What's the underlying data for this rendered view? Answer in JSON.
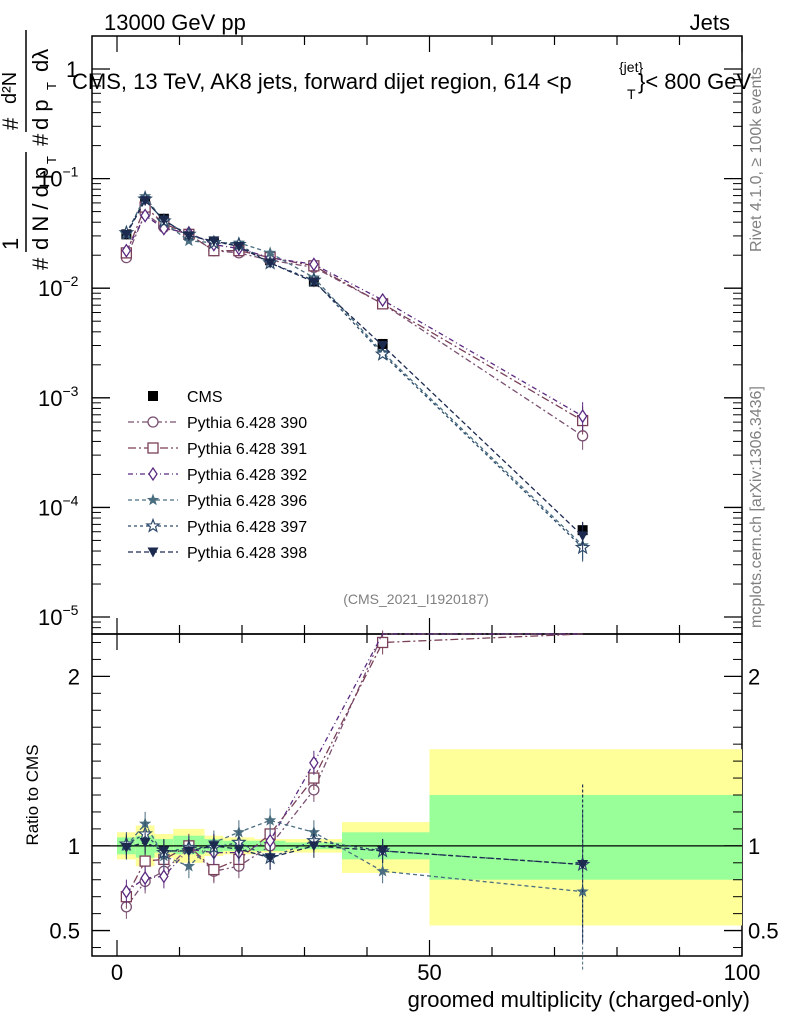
{
  "header": {
    "left": "13000 GeV pp",
    "right": "Jets",
    "title": "CMS, 13 TeV, AK8 jets, forward dijet region, 614 <p",
    "title_sup": "{jet}",
    "title_sub": "T",
    "title_tail": "}< 800 GeV"
  },
  "side": {
    "rivet": "Rivet 4.1.0, ≥ 100k events",
    "mcplots": "mcplots.cern.ch [arXiv:1306.3436]"
  },
  "ylabel": {
    "hash": "#",
    "one": "1",
    "dN": "d N / d p",
    "T": "T",
    "d2N": "d²N",
    "dpT": "d p",
    "dl": "dλ"
  },
  "watermark": "(CMS_2021_I1920187)",
  "colors": {
    "data": "#000000",
    "p390": "#7a5072",
    "p391": "#7a4058",
    "p392": "#5a2a80",
    "p396": "#4a6e80",
    "p397": "#2c4a6a",
    "p398": "#1c2a50",
    "band_inner": "#99ff99",
    "band_outer": "#ffff99"
  },
  "chart_data": [
    {
      "type": "line",
      "name": "main",
      "yscale": "log",
      "ylim": [
        7e-06,
        2.0
      ],
      "xlim": [
        -4,
        100
      ],
      "yticks": [
        {
          "value": 1e-05,
          "base": "10",
          "exp": "−5"
        },
        {
          "value": 0.0001,
          "base": "10",
          "exp": "−4"
        },
        {
          "value": 0.001,
          "base": "10",
          "exp": "−3"
        },
        {
          "value": 0.01,
          "base": "10",
          "exp": "−2"
        },
        {
          "value": 0.1,
          "base": "10",
          "exp": "−1"
        },
        {
          "value": 1,
          "base": "1",
          "exp": ""
        }
      ],
      "x": [
        1.5,
        4.5,
        7.5,
        11.5,
        15.5,
        19.5,
        24.5,
        31.5,
        42.5,
        74.5
      ],
      "series": [
        {
          "name": "CMS",
          "key": "data",
          "marker": "square",
          "dash": "",
          "values": [
            0.031,
            0.061,
            0.043,
            0.031,
            0.026,
            0.024,
            0.018,
            0.0115,
            0.0031,
            6.2e-05
          ]
        },
        {
          "name": "Pythia 6.428 390",
          "key": "p390",
          "marker": "circle",
          "dash": "6 3 2 3",
          "values": [
            0.019,
            0.048,
            0.036,
            0.031,
            0.022,
            0.021,
            0.018,
            0.0155,
            0.0072,
            0.00045
          ]
        },
        {
          "name": "Pythia 6.428 391",
          "key": "p391",
          "marker": "osquare",
          "dash": "8 3 2 3",
          "values": [
            0.021,
            0.055,
            0.039,
            0.031,
            0.022,
            0.022,
            0.019,
            0.016,
            0.0072,
            0.00062
          ]
        },
        {
          "name": "Pythia 6.428 392",
          "key": "p392",
          "marker": "diamond",
          "dash": "5 3 1 3",
          "values": [
            0.022,
            0.046,
            0.035,
            0.032,
            0.025,
            0.023,
            0.019,
            0.0165,
            0.0078,
            0.00068
          ]
        },
        {
          "name": "Pythia 6.428 396",
          "key": "p396",
          "marker": "star",
          "dash": "4 3",
          "values": [
            0.031,
            0.069,
            0.04,
            0.027,
            0.026,
            0.026,
            0.021,
            0.0125,
            0.0026,
            4.5e-05
          ]
        },
        {
          "name": "Pythia 6.428 397",
          "key": "p397",
          "marker": "ostar",
          "dash": "3 3",
          "values": [
            0.032,
            0.065,
            0.041,
            0.031,
            0.026,
            0.025,
            0.017,
            0.0118,
            0.0025,
            4.3e-05
          ]
        },
        {
          "name": "Pythia 6.428 398",
          "key": "p398",
          "marker": "tri",
          "dash": "5 3",
          "values": [
            0.031,
            0.063,
            0.042,
            0.03,
            0.027,
            0.024,
            0.017,
            0.0114,
            0.003,
            5.5e-05
          ]
        }
      ]
    },
    {
      "type": "line",
      "name": "ratio",
      "ylabel": "Ratio to CMS",
      "xlabel": "groomed multiplicity (charged-only)",
      "ylim": [
        0.35,
        2.25
      ],
      "xlim": [
        -4,
        100
      ],
      "xticks": [
        0,
        50,
        100
      ],
      "yticks": [
        0.5,
        1,
        2
      ],
      "bands": [
        {
          "x0": 0,
          "x1": 3,
          "inner": [
            0.95,
            1.05
          ],
          "outer": [
            0.92,
            1.08
          ]
        },
        {
          "x0": 3,
          "x1": 6,
          "inner": [
            0.93,
            1.06
          ],
          "outer": [
            0.88,
            1.12
          ]
        },
        {
          "x0": 6,
          "x1": 9,
          "inner": [
            0.96,
            1.04
          ],
          "outer": [
            0.93,
            1.07
          ]
        },
        {
          "x0": 9,
          "x1": 14,
          "inner": [
            0.95,
            1.06
          ],
          "outer": [
            0.9,
            1.1
          ]
        },
        {
          "x0": 14,
          "x1": 17,
          "inner": [
            0.96,
            1.04
          ],
          "outer": [
            0.94,
            1.06
          ]
        },
        {
          "x0": 17,
          "x1": 22,
          "inner": [
            0.97,
            1.03
          ],
          "outer": [
            0.95,
            1.05
          ]
        },
        {
          "x0": 22,
          "x1": 27,
          "inner": [
            0.97,
            1.03
          ],
          "outer": [
            0.96,
            1.04
          ]
        },
        {
          "x0": 27,
          "x1": 36,
          "inner": [
            0.98,
            1.02
          ],
          "outer": [
            0.96,
            1.04
          ]
        },
        {
          "x0": 36,
          "x1": 50,
          "inner": [
            0.92,
            1.08
          ],
          "outer": [
            0.84,
            1.14
          ]
        },
        {
          "x0": 50,
          "x1": 100,
          "inner": [
            0.8,
            1.3
          ],
          "outer": [
            0.53,
            1.57
          ]
        }
      ],
      "x": [
        1.5,
        4.5,
        7.5,
        11.5,
        15.5,
        19.5,
        24.5,
        31.5,
        42.5,
        74.5
      ],
      "series": [
        {
          "name": "Pythia 6.428 390",
          "key": "p390",
          "marker": "circle",
          "dash": "6 3 2 3",
          "values": [
            0.64,
            0.79,
            0.85,
            0.99,
            0.85,
            0.88,
            1.0,
            1.33,
            2.25,
            2.25
          ]
        },
        {
          "name": "Pythia 6.428 391",
          "key": "p391",
          "marker": "osquare",
          "dash": "8 3 2 3",
          "values": [
            0.7,
            0.91,
            0.92,
            1.0,
            0.86,
            0.92,
            1.07,
            1.4,
            2.2,
            2.25
          ]
        },
        {
          "name": "Pythia 6.428 392",
          "key": "p392",
          "marker": "diamond",
          "dash": "5 3 1 3",
          "values": [
            0.73,
            0.81,
            0.82,
            0.98,
            0.96,
            0.96,
            1.03,
            1.49,
            2.25,
            2.25
          ]
        },
        {
          "name": "Pythia 6.428 396",
          "key": "p396",
          "marker": "star",
          "dash": "4 3",
          "values": [
            1.0,
            1.13,
            0.94,
            0.88,
            1.02,
            1.08,
            1.15,
            1.08,
            0.85,
            0.73
          ]
        },
        {
          "name": "Pythia 6.428 397",
          "key": "p397",
          "marker": "ostar",
          "dash": "3 3",
          "values": [
            1.01,
            1.07,
            0.96,
            0.99,
            0.99,
            1.02,
            0.93,
            1.03,
            0.97,
            0.89
          ]
        },
        {
          "name": "Pythia 6.428 398",
          "key": "p398",
          "marker": "tri",
          "dash": "5 3",
          "values": [
            0.99,
            1.02,
            0.97,
            0.97,
            1.0,
            0.98,
            0.93,
            1.0,
            0.97,
            0.89
          ]
        }
      ]
    }
  ]
}
